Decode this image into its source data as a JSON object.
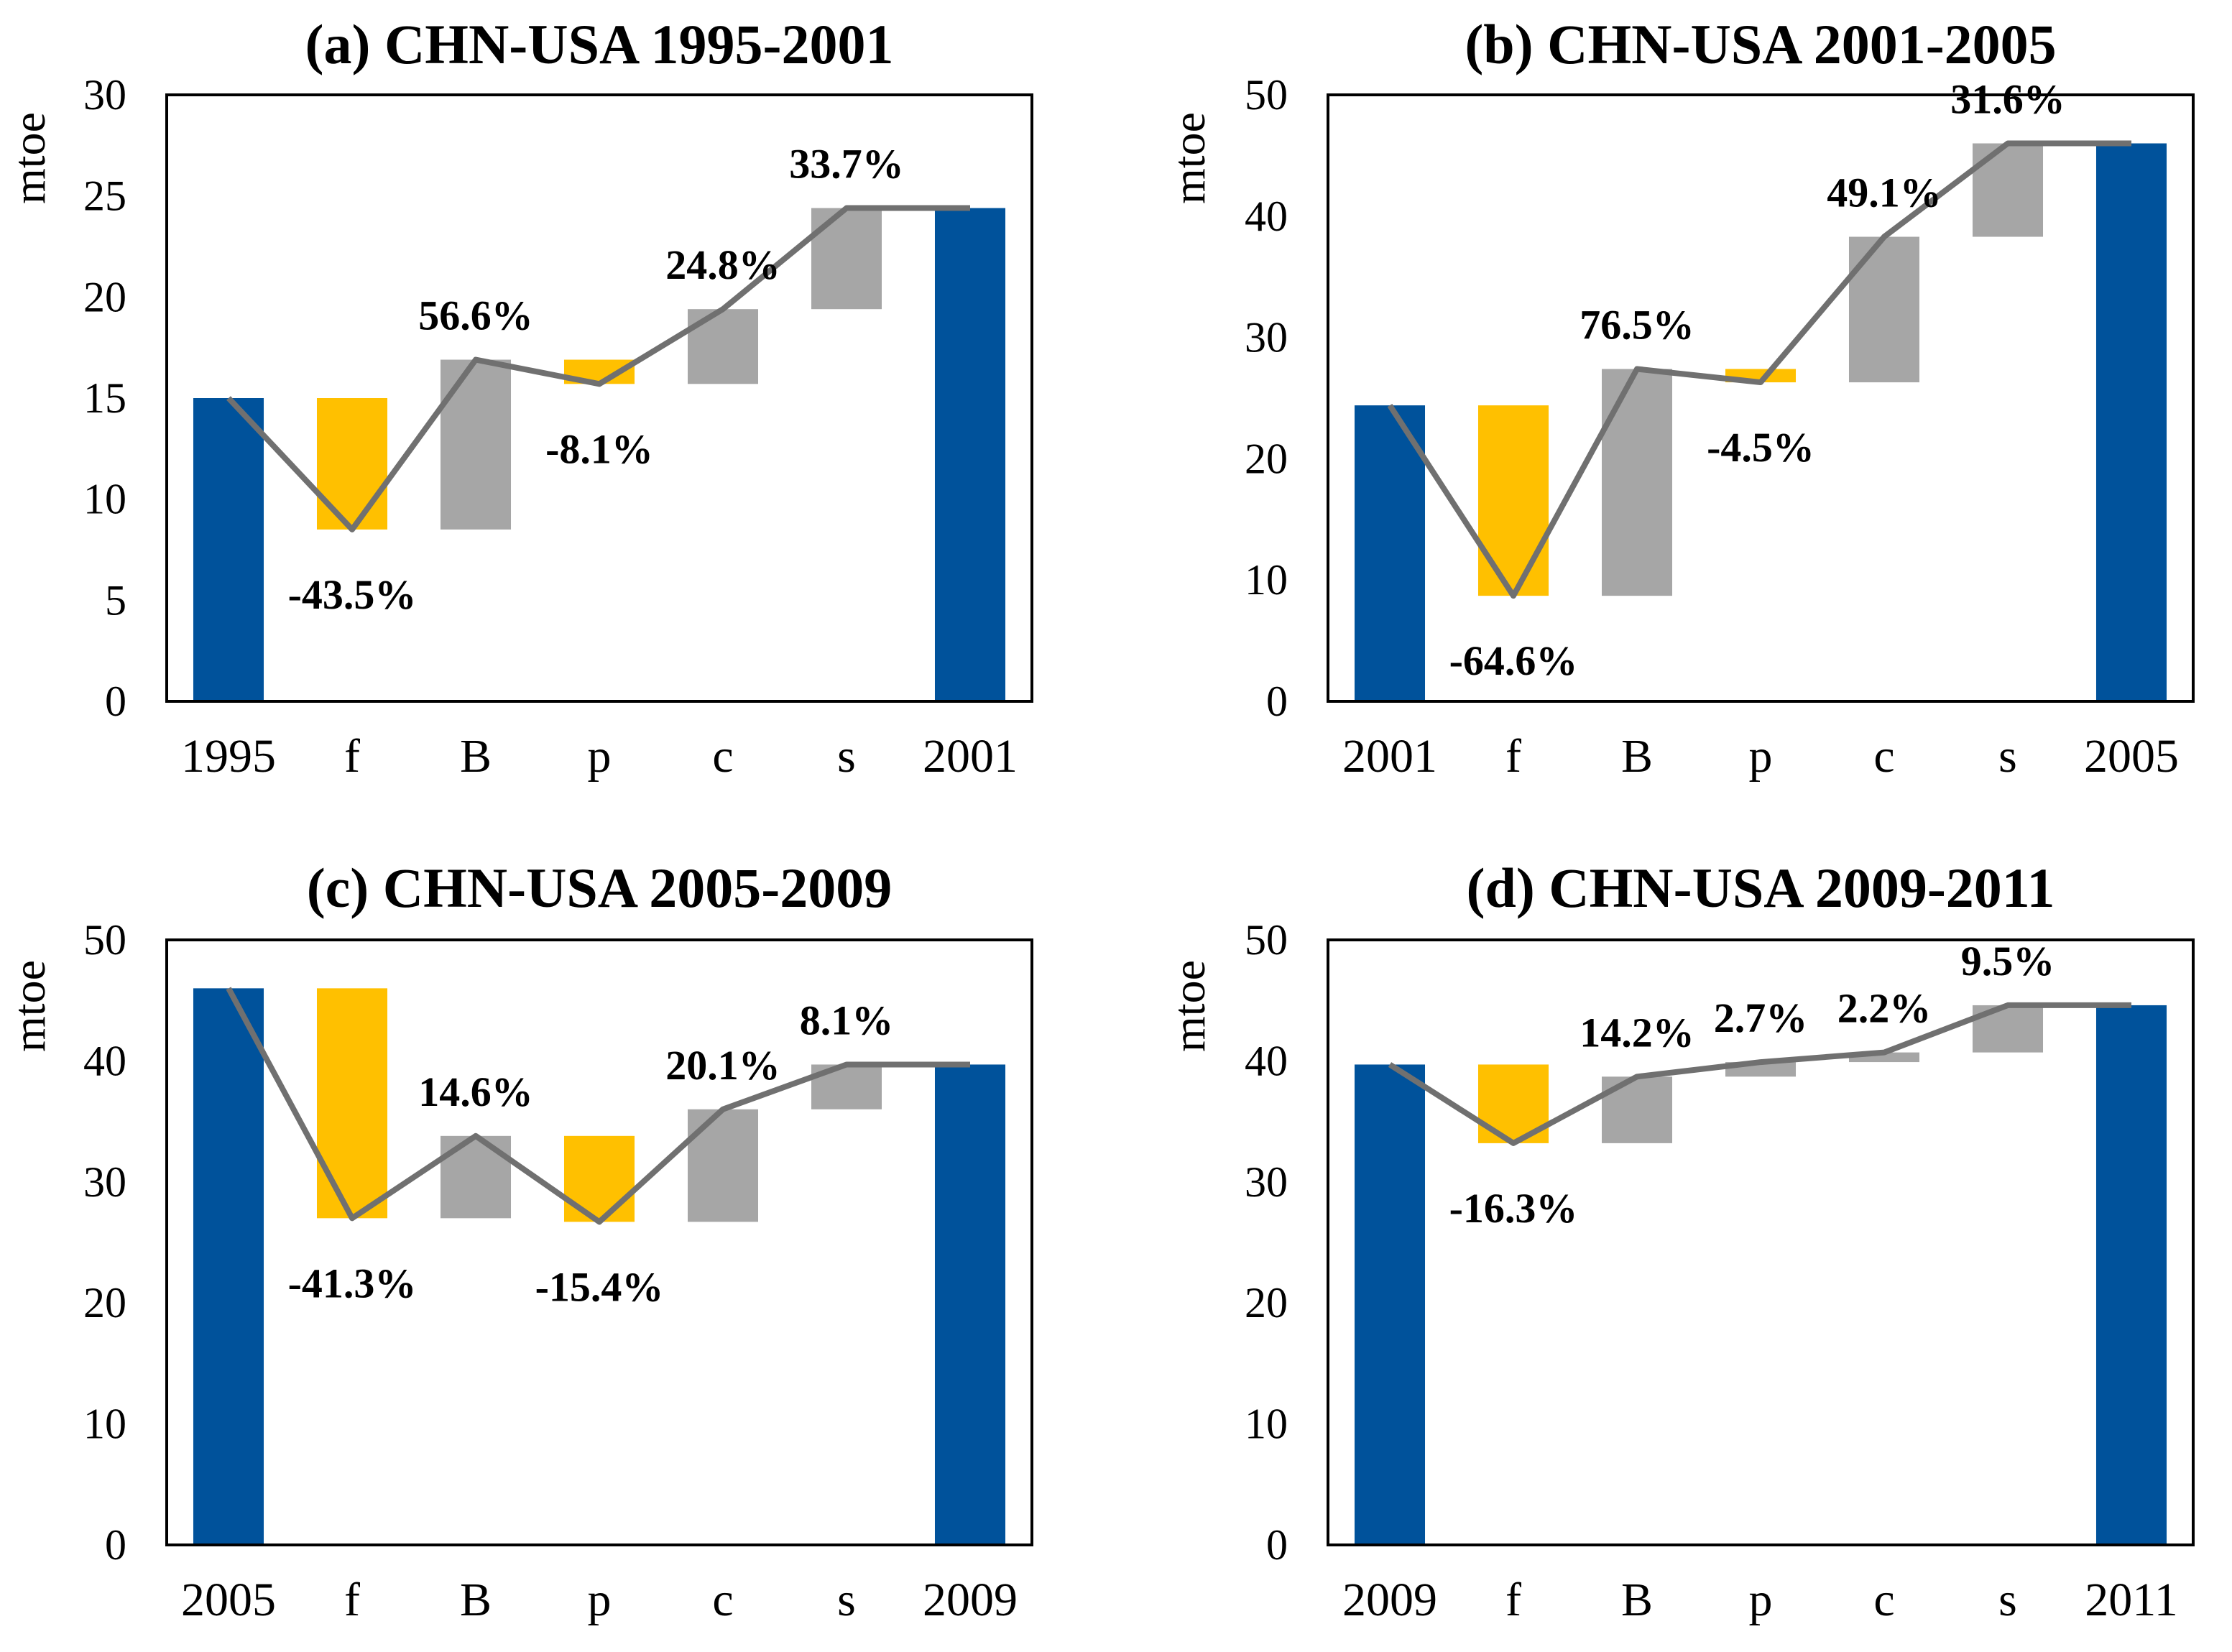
{
  "chart_data": [
    {
      "type": "bar",
      "subtype": "waterfall",
      "title": "(a) CHN-USA 1995-2001",
      "ylabel": "mtoe",
      "xlabel": "",
      "ylim": [
        0,
        30
      ],
      "yticks": [
        0,
        5,
        10,
        15,
        20,
        25,
        30
      ],
      "grid": false,
      "categories": [
        "1995",
        "f",
        "B",
        "p",
        "c",
        "s",
        "2001"
      ],
      "levels": [
        15.0,
        8.5,
        16.9,
        15.7,
        19.4,
        24.4,
        24.4
      ],
      "labels": [
        "",
        "-43.5%",
        "56.6%",
        "-8.1%",
        "24.8%",
        "33.7%",
        ""
      ],
      "colors": {
        "total": "#00529b",
        "negative": "#ffc000",
        "positive": "#a6a6a6",
        "line": "#707070"
      }
    },
    {
      "type": "bar",
      "subtype": "waterfall",
      "title": "(b) CHN-USA 2001-2005",
      "ylabel": "mtoe",
      "xlabel": "",
      "ylim": [
        0,
        50
      ],
      "yticks": [
        0,
        10,
        20,
        30,
        40,
        50
      ],
      "grid": false,
      "categories": [
        "2001",
        "f",
        "B",
        "p",
        "c",
        "s",
        "2005"
      ],
      "levels": [
        24.4,
        8.7,
        27.4,
        26.3,
        38.3,
        46.0,
        46.0
      ],
      "labels": [
        "",
        "-64.6%",
        "76.5%",
        "-4.5%",
        "49.1%",
        "31.6%",
        ""
      ],
      "colors": {
        "total": "#00529b",
        "negative": "#ffc000",
        "positive": "#a6a6a6",
        "line": "#707070"
      }
    },
    {
      "type": "bar",
      "subtype": "waterfall",
      "title": "(c) CHN-USA 2005-2009",
      "ylabel": "mtoe",
      "xlabel": "",
      "ylim": [
        0,
        50
      ],
      "yticks": [
        0,
        10,
        20,
        30,
        40,
        50
      ],
      "grid": false,
      "categories": [
        "2005",
        "f",
        "B",
        "p",
        "c",
        "s",
        "2009"
      ],
      "levels": [
        46.0,
        27.0,
        33.8,
        26.7,
        36.0,
        39.7,
        39.7
      ],
      "labels": [
        "",
        "-41.3%",
        "14.6%",
        "-15.4%",
        "20.1%",
        "8.1%",
        ""
      ],
      "colors": {
        "total": "#00529b",
        "negative": "#ffc000",
        "positive": "#a6a6a6",
        "line": "#707070"
      }
    },
    {
      "type": "bar",
      "subtype": "waterfall",
      "title": "(d) CHN-USA 2009-2011",
      "ylabel": "mtoe",
      "xlabel": "",
      "ylim": [
        0,
        50
      ],
      "yticks": [
        0,
        10,
        20,
        30,
        40,
        50
      ],
      "grid": false,
      "categories": [
        "2009",
        "f",
        "B",
        "p",
        "c",
        "s",
        "2011"
      ],
      "levels": [
        39.7,
        33.2,
        38.7,
        39.9,
        40.7,
        44.6,
        44.6
      ],
      "labels": [
        "",
        "-16.3%",
        "14.2%",
        "2.7%",
        "2.2%",
        "9.5%",
        ""
      ],
      "colors": {
        "total": "#00529b",
        "negative": "#ffc000",
        "positive": "#a6a6a6",
        "line": "#707070"
      }
    }
  ]
}
